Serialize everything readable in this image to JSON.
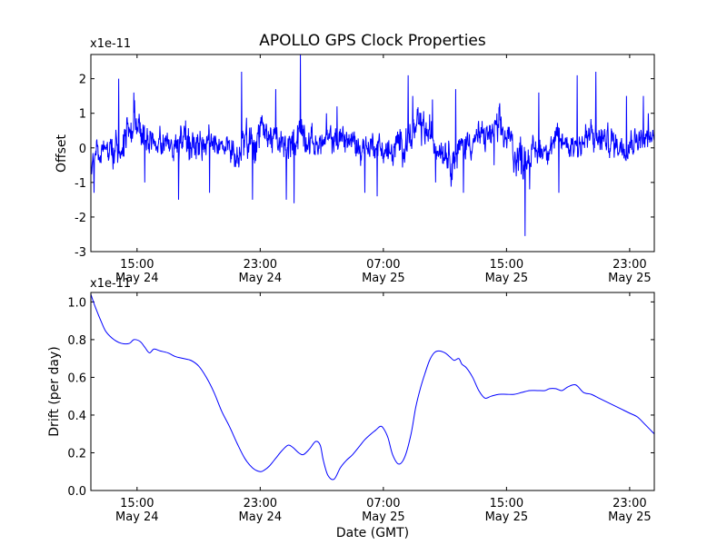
{
  "chart_data": [
    {
      "type": "line",
      "title": "APOLLO GPS Clock Properties",
      "ylabel": "Offset",
      "xlabel": "",
      "y_multiplier_label": "x1e-11",
      "xlim": [
        12,
        48.6
      ],
      "ylim": [
        -3,
        2.7
      ],
      "yticks": [
        -3,
        -2,
        -1,
        0,
        1,
        2
      ],
      "ytick_labels": [
        "-3",
        "-2",
        "-1",
        "0",
        "1",
        "2"
      ],
      "xticks": [
        {
          "x": 15,
          "time": "15:00",
          "date": "May 24"
        },
        {
          "x": 23,
          "time": "23:00",
          "date": "May 24"
        },
        {
          "x": 31,
          "time": "07:00",
          "date": "May 25"
        },
        {
          "x": 39,
          "time": "15:00",
          "date": "May 25"
        },
        {
          "x": 47,
          "time": "23:00",
          "date": "May 25"
        }
      ],
      "grid": false,
      "color": "#0000ff",
      "series": [
        {
          "envelope_x": [
            12,
            13,
            14,
            14.8,
            15.5,
            16.5,
            17.5,
            18.5,
            19.5,
            20.5,
            21.5,
            22.5,
            23.5,
            24.5,
            25,
            25.5,
            26.5,
            27.5,
            28.5,
            29.5,
            30.5,
            31.5,
            32.5,
            33.5,
            34.5,
            35,
            35.5,
            36.5,
            37.5,
            38.5,
            39.2,
            39.8,
            40.5,
            41.5,
            42.5,
            43.5,
            44.5,
            45.5,
            46.5,
            47.5,
            48.6
          ],
          "envelope_center": [
            -0.5,
            -0.1,
            0.1,
            0.8,
            0.3,
            0.1,
            0.0,
            0.1,
            0.2,
            0.0,
            -0.2,
            0.2,
            0.4,
            0.0,
            0.0,
            0.6,
            0.1,
            0.2,
            0.3,
            0.0,
            0.1,
            -0.2,
            0.3,
            0.6,
            0.1,
            0.0,
            -0.3,
            0.2,
            0.3,
            0.5,
            0.2,
            -0.3,
            -0.2,
            0.0,
            0.2,
            0.1,
            0.3,
            0.2,
            0.1,
            0.3,
            0.2
          ],
          "envelope_amp": [
            0.5,
            0.4,
            0.6,
            0.7,
            0.5,
            0.4,
            0.5,
            0.6,
            0.5,
            0.4,
            0.5,
            0.6,
            0.5,
            0.5,
            0.5,
            0.7,
            0.4,
            0.4,
            0.5,
            0.5,
            0.4,
            0.5,
            0.6,
            0.6,
            0.5,
            0.5,
            0.6,
            0.5,
            0.5,
            0.6,
            0.6,
            0.7,
            0.5,
            0.4,
            0.5,
            0.5,
            0.6,
            0.5,
            0.5,
            0.4,
            0.4
          ],
          "spikes": [
            [
              13.8,
              2.0
            ],
            [
              14.8,
              1.6
            ],
            [
              15.5,
              -1.0
            ],
            [
              17.7,
              -1.5
            ],
            [
              19.7,
              -1.3
            ],
            [
              21.8,
              2.2
            ],
            [
              22.5,
              -1.5
            ],
            [
              24.0,
              1.7
            ],
            [
              24.7,
              -1.5
            ],
            [
              25.6,
              2.7
            ],
            [
              25.2,
              -1.6
            ],
            [
              27.3,
              1.0
            ],
            [
              28.0,
              1.2
            ],
            [
              29.8,
              -1.3
            ],
            [
              30.6,
              -1.4
            ],
            [
              32.6,
              2.1
            ],
            [
              32.9,
              1.5
            ],
            [
              34.2,
              1.4
            ],
            [
              34.4,
              -1.0
            ],
            [
              35.7,
              1.7
            ],
            [
              36.2,
              -1.3
            ],
            [
              38.2,
              -0.5
            ],
            [
              40.2,
              -2.55
            ],
            [
              40.5,
              -1.2
            ],
            [
              41.1,
              1.6
            ],
            [
              42.4,
              -1.3
            ],
            [
              43.6,
              2.1
            ],
            [
              44.8,
              2.2
            ],
            [
              46.8,
              1.5
            ],
            [
              47.9,
              1.5
            ],
            [
              48.2,
              1.0
            ],
            [
              12.2,
              -1.3
            ]
          ]
        }
      ]
    },
    {
      "type": "line",
      "title": "",
      "ylabel": "Drift (per day)",
      "xlabel": "Date (GMT)",
      "y_multiplier_label": "x1e-11",
      "xlim": [
        12,
        48.6
      ],
      "ylim": [
        0,
        1.05
      ],
      "yticks": [
        0.0,
        0.2,
        0.4,
        0.6,
        0.8,
        1.0
      ],
      "ytick_labels": [
        "0.0",
        "0.2",
        "0.4",
        "0.6",
        "0.8",
        "1.0"
      ],
      "xticks": [
        {
          "x": 15,
          "time": "15:00",
          "date": "May 24"
        },
        {
          "x": 23,
          "time": "23:00",
          "date": "May 24"
        },
        {
          "x": 31,
          "time": "07:00",
          "date": "May 25"
        },
        {
          "x": 39,
          "time": "15:00",
          "date": "May 25"
        },
        {
          "x": 47,
          "time": "23:00",
          "date": "May 25"
        }
      ],
      "grid": false,
      "color": "#0000ff",
      "series": [
        {
          "x": [
            12.0,
            12.3,
            12.7,
            13.0,
            13.5,
            14.0,
            14.5,
            14.8,
            15.2,
            15.5,
            15.8,
            16.1,
            16.5,
            17.0,
            17.5,
            18.0,
            18.5,
            19.0,
            19.5,
            20.0,
            20.5,
            21.0,
            21.5,
            22.0,
            22.5,
            23.0,
            23.3,
            23.6,
            24.0,
            24.4,
            24.8,
            25.1,
            25.5,
            25.8,
            26.2,
            26.6,
            26.9,
            27.1,
            27.4,
            27.8,
            28.2,
            28.6,
            29.0,
            29.5,
            29.8,
            30.2,
            30.5,
            30.8,
            31.0,
            31.3,
            31.6,
            32.0,
            32.4,
            32.8,
            33.1,
            33.4,
            33.7,
            34.0,
            34.3,
            34.6,
            35.0,
            35.3,
            35.6,
            35.9,
            36.1,
            36.4,
            36.8,
            37.2,
            37.6,
            38.0,
            38.5,
            39.0,
            39.5,
            40.0,
            40.5,
            41.0,
            41.5,
            41.8,
            42.2,
            42.6,
            43.0,
            43.5,
            44.0,
            44.5,
            45.0,
            45.5,
            46.0,
            46.5,
            47.0,
            47.5,
            48.0,
            48.6
          ],
          "y": [
            1.04,
            0.97,
            0.89,
            0.84,
            0.8,
            0.78,
            0.78,
            0.8,
            0.79,
            0.76,
            0.73,
            0.75,
            0.74,
            0.73,
            0.71,
            0.7,
            0.69,
            0.66,
            0.6,
            0.52,
            0.42,
            0.34,
            0.25,
            0.17,
            0.12,
            0.1,
            0.11,
            0.13,
            0.17,
            0.21,
            0.24,
            0.23,
            0.2,
            0.19,
            0.22,
            0.26,
            0.24,
            0.16,
            0.08,
            0.06,
            0.12,
            0.16,
            0.19,
            0.24,
            0.27,
            0.3,
            0.32,
            0.34,
            0.33,
            0.28,
            0.19,
            0.14,
            0.18,
            0.3,
            0.44,
            0.54,
            0.62,
            0.69,
            0.73,
            0.74,
            0.73,
            0.71,
            0.69,
            0.7,
            0.67,
            0.65,
            0.6,
            0.53,
            0.49,
            0.5,
            0.51,
            0.51,
            0.51,
            0.52,
            0.53,
            0.53,
            0.53,
            0.54,
            0.54,
            0.53,
            0.55,
            0.56,
            0.52,
            0.51,
            0.49,
            0.47,
            0.45,
            0.43,
            0.41,
            0.39,
            0.35,
            0.3
          ]
        }
      ]
    }
  ]
}
